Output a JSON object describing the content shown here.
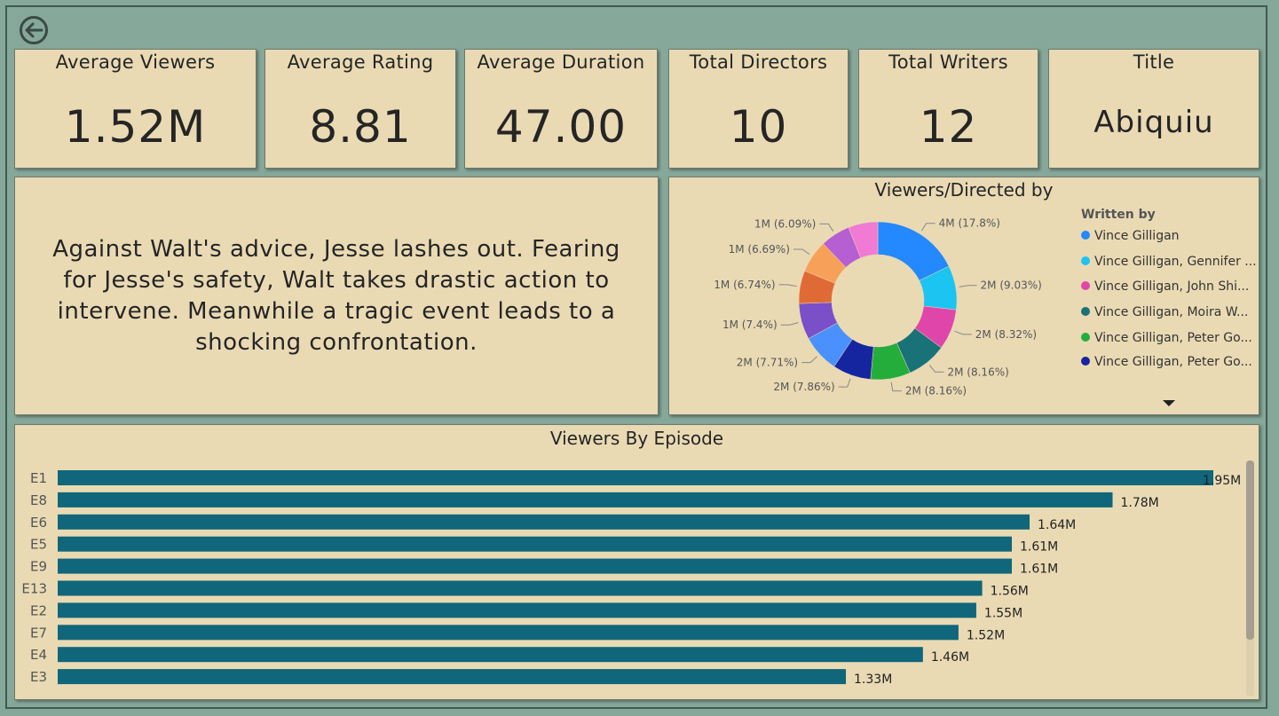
{
  "kpis": [
    {
      "label": "Average Viewers",
      "value": "1.52M"
    },
    {
      "label": "Average Rating",
      "value": "8.81"
    },
    {
      "label": "Average Duration",
      "value": "47.00"
    },
    {
      "label": "Total Directors",
      "value": "10"
    },
    {
      "label": "Total Writers",
      "value": "12"
    },
    {
      "label": "Title",
      "value": "Abiquiu"
    }
  ],
  "description": "Against Walt's advice, Jesse lashes out. Fearing for Jesse's safety, Walt takes drastic action to intervene. Meanwhile a tragic event leads to a shocking confrontation.",
  "donut": {
    "legend_title": "Written by",
    "legend": [
      {
        "label": "Vince Gilligan",
        "color": "#2488ff"
      },
      {
        "label": "Vince Gilligan, Gennifer ...",
        "color": "#1cc4f1"
      },
      {
        "label": "Vince Gilligan, John Shi...",
        "color": "#e046a9"
      },
      {
        "label": "Vince Gilligan, Moira W...",
        "color": "#197278"
      },
      {
        "label": "Vince Gilligan, Peter Go...",
        "color": "#25ad3c"
      },
      {
        "label": "Vince Gilligan, Peter Go...",
        "color": "#1525a0"
      }
    ]
  },
  "chart_data": [
    {
      "type": "pie",
      "title": "Viewers/Directed by",
      "legend_title": "Written by",
      "slices": [
        {
          "label": "4M (17.8%)",
          "value": 17.8,
          "color": "#2488ff"
        },
        {
          "label": "2M (9.03%)",
          "value": 9.03,
          "color": "#1cc4f1"
        },
        {
          "label": "2M (8.32%)",
          "value": 8.32,
          "color": "#e046a9"
        },
        {
          "label": "2M (8.16%)",
          "value": 8.16,
          "color": "#197278"
        },
        {
          "label": "2M (8.16%)",
          "value": 8.16,
          "color": "#25ad3c"
        },
        {
          "label": "2M (7.86%)",
          "value": 7.86,
          "color": "#1525a0"
        },
        {
          "label": "2M (7.71%)",
          "value": 7.71,
          "color": "#4a90ff"
        },
        {
          "label": "1M (7.4%)",
          "value": 7.4,
          "color": "#7a4fc8"
        },
        {
          "label": "1M (6.74%)",
          "value": 6.74,
          "color": "#e06a36"
        },
        {
          "label": "1M (6.69%)",
          "value": 6.69,
          "color": "#f7a05a"
        },
        {
          "label": "1M (6.09%)",
          "value": 6.09,
          "color": "#b65fd2"
        },
        {
          "label": "",
          "value": 6.04,
          "color": "#f07ad4"
        }
      ]
    },
    {
      "type": "bar",
      "orientation": "horizontal",
      "title": "Viewers By Episode",
      "categories": [
        "E1",
        "E8",
        "E6",
        "E5",
        "E9",
        "E13",
        "E2",
        "E7",
        "E4",
        "E3"
      ],
      "values": [
        1.95,
        1.78,
        1.64,
        1.61,
        1.61,
        1.56,
        1.55,
        1.52,
        1.46,
        1.33
      ],
      "value_labels": [
        "1.95M",
        "1.78M",
        "1.64M",
        "1.61M",
        "1.61M",
        "1.56M",
        "1.55M",
        "1.52M",
        "1.46M",
        "1.33M"
      ],
      "unit": "M",
      "color": "#10667a",
      "xlim": [
        0,
        1.95
      ]
    }
  ]
}
